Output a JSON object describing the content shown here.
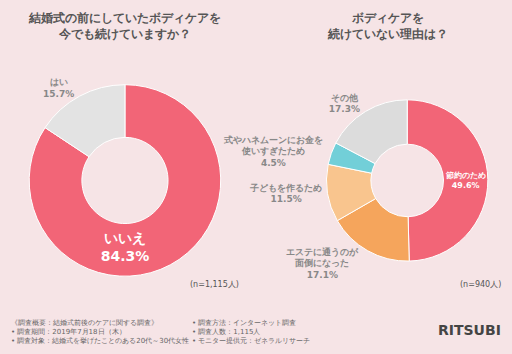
{
  "chart_data": [
    {
      "type": "pie",
      "title": "結婚式の前にしていたボディケアを\n今でも続けていますか？",
      "categories": [
        "いいえ",
        "はい"
      ],
      "values": [
        84.3,
        15.7
      ],
      "value_labels": [
        "84.3%",
        "15.7%"
      ],
      "colors": [
        "#f26577",
        "#e3e3e3"
      ],
      "data_labels": true,
      "note": "(n=1,115人)"
    },
    {
      "type": "pie",
      "title": "ボディケアを\n続けていない理由は？",
      "categories": [
        "節約のため",
        "エステに通うのが\n面倒になった",
        "子どもを作るため",
        "式やハネムーンにお金を\n使いすぎたため",
        "その他"
      ],
      "values": [
        49.6,
        17.1,
        11.5,
        4.5,
        17.3
      ],
      "value_labels": [
        "49.6%",
        "17.1%",
        "11.5%",
        "4.5%",
        "17.3%"
      ],
      "colors": [
        "#f26577",
        "#f5a55c",
        "#f9c58e",
        "#72cfd8",
        "#dcdcdc"
      ],
      "data_labels": true,
      "note": "(n=940人)"
    }
  ],
  "survey": {
    "heading": "《調査概要：結婚式前後のケアに関する調査》",
    "items": [
      "• 調査期間：2019年7月18日（木）",
      "• 調査対象：結婚式を挙げたことのある20代～30代女性",
      "• 調査方法：インターネット調査",
      "• 調査人数：1,115人",
      "• モニター提供元：ゼネラルリサーチ"
    ]
  },
  "brand": "RITSUBI"
}
